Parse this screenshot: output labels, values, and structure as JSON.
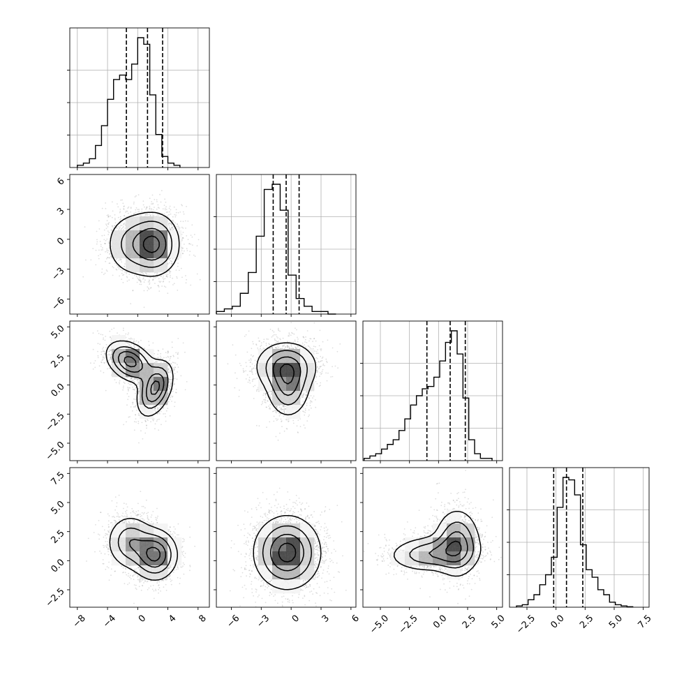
{
  "chart_data": {
    "type": "corner",
    "dimensions": 4,
    "grid": true,
    "quantile_lines": "dashed",
    "axes": [
      {
        "range": [
          -9,
          9.5
        ],
        "ticks": [
          -8,
          -4,
          0,
          4,
          8
        ],
        "tick_labels": [
          "−8",
          "−4",
          "0",
          "4",
          "8"
        ]
      },
      {
        "range": [
          -7.5,
          6.5
        ],
        "ticks": [
          -6,
          -3,
          0,
          3,
          6
        ],
        "tick_labels": [
          "−6",
          "−3",
          "0",
          "3",
          "6"
        ]
      },
      {
        "range": [
          -6.5,
          5.5
        ],
        "ticks": [
          -5,
          -2.5,
          0,
          2.5,
          5
        ],
        "tick_labels": [
          "−5.0",
          "−2.5",
          "0.0",
          "2.5",
          "5.0"
        ]
      },
      {
        "range": [
          -4,
          8
        ],
        "ticks": [
          -2.5,
          0,
          2.5,
          5,
          7.5
        ],
        "tick_labels": [
          "−2.5",
          "0.0",
          "2.5",
          "5.0",
          "7.5"
        ]
      }
    ],
    "quantiles": [
      [
        -1.5,
        1.3,
        3.3
      ],
      [
        -1.8,
        -0.5,
        0.8
      ],
      [
        -1.0,
        1.0,
        2.3
      ],
      [
        -0.2,
        0.9,
        2.3
      ]
    ],
    "histograms": [
      {
        "bin_start": -8,
        "bin_width": 0.8,
        "counts": [
          1,
          2,
          4,
          10,
          19,
          31,
          40,
          42,
          40,
          47,
          59,
          56,
          33,
          15,
          5,
          2,
          1
        ]
      },
      {
        "bin_start": -7.5,
        "bin_width": 0.8,
        "counts": [
          1,
          2,
          3,
          8,
          16,
          30,
          48,
          50,
          40,
          15,
          6,
          3,
          1,
          1,
          0
        ]
      },
      {
        "bin_start": -6.4,
        "bin_width": 0.5,
        "counts": [
          1,
          2,
          3,
          5,
          7,
          9,
          13,
          18,
          24,
          28,
          31,
          32,
          36,
          43,
          51,
          56,
          46,
          27,
          9,
          3,
          1,
          1
        ]
      },
      {
        "bin_start": -3.4,
        "bin_width": 0.5,
        "counts": [
          0.5,
          1,
          3,
          5,
          9,
          13,
          20,
          40,
          52,
          51,
          45,
          25,
          15,
          12,
          7,
          5,
          2,
          1,
          0.5,
          0.2
        ]
      }
    ],
    "pairs": [
      {
        "x": 0,
        "y": 1,
        "blobs": [
          [
            -1.0,
            -0.5,
            1.8,
            1.7,
            0,
            0.5
          ],
          [
            2.2,
            -0.5,
            1.7,
            1.6,
            0,
            1.0
          ]
        ]
      },
      {
        "x": 0,
        "y": 2,
        "blobs": [
          [
            -1.0,
            2.0,
            1.6,
            0.9,
            -0.35,
            1.0
          ],
          [
            2.3,
            -0.3,
            1.2,
            1.2,
            0.4,
            0.95
          ]
        ]
      },
      {
        "x": 1,
        "y": 2,
        "blobs": [
          [
            -0.5,
            1.6,
            1.6,
            1.1,
            0,
            1.0
          ],
          [
            -0.3,
            -0.3,
            1.1,
            1.3,
            0,
            0.7
          ]
        ]
      },
      {
        "x": 0,
        "y": 3,
        "blobs": [
          [
            -1.0,
            1.6,
            1.6,
            1.2,
            0,
            0.7
          ],
          [
            2.3,
            0.5,
            1.5,
            1.1,
            0,
            1.0
          ]
        ]
      },
      {
        "x": 1,
        "y": 3,
        "blobs": [
          [
            -0.4,
            0.7,
            1.7,
            1.6,
            0,
            1.0
          ]
        ]
      },
      {
        "x": 2,
        "y": 3,
        "blobs": [
          [
            -0.6,
            0.6,
            1.9,
            0.8,
            0.1,
            0.8
          ],
          [
            1.6,
            1.5,
            1.0,
            1.5,
            0,
            1.0
          ]
        ]
      }
    ]
  }
}
